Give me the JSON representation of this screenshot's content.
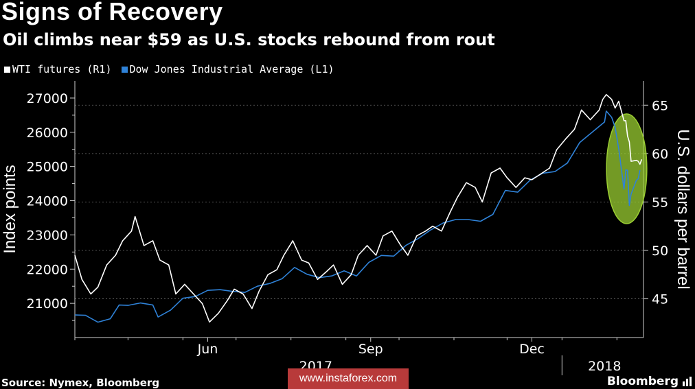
{
  "header": {
    "title": "Signs of Recovery",
    "subtitle": "Oil climbs near $59 as U.S. stocks rebound from rout"
  },
  "legend": [
    {
      "label": "WTI futures (R1)",
      "color": "#ffffff"
    },
    {
      "label": "Dow Jones Industrial Average (L1)",
      "color": "#2f82d8"
    }
  ],
  "footer": {
    "source": "Source: Nymex, Bloomberg",
    "brand": "Bloomberg",
    "watermark": "www.instaforex.com"
  },
  "chart_data": {
    "type": "line",
    "title": "Signs of Recovery",
    "subtitle": "Oil climbs near $59 as U.S. stocks rebound from rout",
    "ylabel": "Index points",
    "y2label": "U.S. dollars per barrel",
    "ylim": [
      20000,
      27500
    ],
    "y2lim": [
      41.0,
      67.5
    ],
    "yticks": [
      21000,
      22000,
      23000,
      24000,
      25000,
      26000,
      27000
    ],
    "y2ticks": [
      45,
      50,
      55,
      60,
      65
    ],
    "xlim": [
      "2017-04-01",
      "2018-02-16"
    ],
    "xticks": [
      {
        "date": "2017-06-15",
        "label": "Jun"
      },
      {
        "date": "2017-09-15",
        "label": "Sep"
      },
      {
        "date": "2017-12-15",
        "label": "Dec"
      }
    ],
    "year_labels": [
      {
        "date": "2017-08-15",
        "label": "2017"
      },
      {
        "date": "2018-01-25",
        "label": "2018"
      }
    ],
    "year_divider": "2018-01-01",
    "highlight": {
      "from": "2018-01-30",
      "to": "2018-02-14",
      "shape": "ellipse",
      "color": "#9acd32"
    },
    "grid": "dotted-horizontal",
    "series": [
      {
        "name": "Dow Jones Industrial Average (L1)",
        "axis": "left",
        "color": "#2f82d8",
        "points": [
          [
            "2017-04-01",
            20660
          ],
          [
            "2017-04-07",
            20650
          ],
          [
            "2017-04-14",
            20450
          ],
          [
            "2017-04-21",
            20550
          ],
          [
            "2017-04-26",
            20950
          ],
          [
            "2017-05-01",
            20940
          ],
          [
            "2017-05-08",
            21010
          ],
          [
            "2017-05-15",
            20950
          ],
          [
            "2017-05-18",
            20600
          ],
          [
            "2017-05-25",
            20800
          ],
          [
            "2017-06-01",
            21150
          ],
          [
            "2017-06-08",
            21200
          ],
          [
            "2017-06-15",
            21380
          ],
          [
            "2017-06-22",
            21400
          ],
          [
            "2017-06-29",
            21350
          ],
          [
            "2017-07-06",
            21320
          ],
          [
            "2017-07-13",
            21500
          ],
          [
            "2017-07-20",
            21580
          ],
          [
            "2017-07-27",
            21720
          ],
          [
            "2017-08-03",
            22050
          ],
          [
            "2017-08-10",
            21850
          ],
          [
            "2017-08-17",
            21750
          ],
          [
            "2017-08-24",
            21800
          ],
          [
            "2017-08-31",
            21950
          ],
          [
            "2017-09-07",
            21800
          ],
          [
            "2017-09-14",
            22200
          ],
          [
            "2017-09-21",
            22400
          ],
          [
            "2017-09-28",
            22380
          ],
          [
            "2017-10-05",
            22700
          ],
          [
            "2017-10-12",
            22900
          ],
          [
            "2017-10-19",
            23150
          ],
          [
            "2017-10-26",
            23350
          ],
          [
            "2017-11-02",
            23450
          ],
          [
            "2017-11-09",
            23450
          ],
          [
            "2017-11-16",
            23400
          ],
          [
            "2017-11-23",
            23600
          ],
          [
            "2017-11-30",
            24300
          ],
          [
            "2017-12-07",
            24250
          ],
          [
            "2017-12-14",
            24600
          ],
          [
            "2017-12-21",
            24800
          ],
          [
            "2017-12-28",
            24850
          ],
          [
            "2018-01-04",
            25100
          ],
          [
            "2018-01-11",
            25700
          ],
          [
            "2018-01-18",
            26000
          ],
          [
            "2018-01-25",
            26300
          ],
          [
            "2018-01-26",
            26620
          ],
          [
            "2018-01-29",
            26440
          ],
          [
            "2018-01-31",
            26150
          ],
          [
            "2018-02-02",
            25520
          ],
          [
            "2018-02-05",
            24340
          ],
          [
            "2018-02-06",
            24900
          ],
          [
            "2018-02-07",
            24890
          ],
          [
            "2018-02-08",
            23860
          ],
          [
            "2018-02-09",
            24190
          ],
          [
            "2018-02-12",
            24600
          ],
          [
            "2018-02-13",
            24640
          ],
          [
            "2018-02-14",
            24890
          ]
        ]
      },
      {
        "name": "WTI futures (R1)",
        "axis": "right",
        "color": "#ffffff",
        "points": [
          [
            "2017-04-01",
            49.5
          ],
          [
            "2017-04-05",
            47.0
          ],
          [
            "2017-04-10",
            45.5
          ],
          [
            "2017-04-14",
            46.2
          ],
          [
            "2017-04-19",
            48.5
          ],
          [
            "2017-04-24",
            49.5
          ],
          [
            "2017-04-28",
            51.0
          ],
          [
            "2017-05-03",
            52.0
          ],
          [
            "2017-05-05",
            53.5
          ],
          [
            "2017-05-10",
            50.5
          ],
          [
            "2017-05-15",
            51.0
          ],
          [
            "2017-05-19",
            49.0
          ],
          [
            "2017-05-24",
            48.5
          ],
          [
            "2017-05-28",
            45.5
          ],
          [
            "2017-06-02",
            46.5
          ],
          [
            "2017-06-07",
            45.5
          ],
          [
            "2017-06-12",
            44.5
          ],
          [
            "2017-06-16",
            42.6
          ],
          [
            "2017-06-21",
            43.5
          ],
          [
            "2017-06-26",
            44.8
          ],
          [
            "2017-06-30",
            46.0
          ],
          [
            "2017-07-05",
            45.5
          ],
          [
            "2017-07-10",
            44.0
          ],
          [
            "2017-07-14",
            45.8
          ],
          [
            "2017-07-19",
            47.5
          ],
          [
            "2017-07-24",
            48.0
          ],
          [
            "2017-07-28",
            49.5
          ],
          [
            "2017-08-02",
            51.0
          ],
          [
            "2017-08-07",
            49.0
          ],
          [
            "2017-08-11",
            48.7
          ],
          [
            "2017-08-16",
            47.0
          ],
          [
            "2017-08-21",
            47.8
          ],
          [
            "2017-08-25",
            48.5
          ],
          [
            "2017-08-30",
            46.5
          ],
          [
            "2017-09-04",
            47.5
          ],
          [
            "2017-09-08",
            49.5
          ],
          [
            "2017-09-13",
            50.5
          ],
          [
            "2017-09-18",
            49.5
          ],
          [
            "2017-09-22",
            51.5
          ],
          [
            "2017-09-27",
            52.0
          ],
          [
            "2017-10-02",
            50.5
          ],
          [
            "2017-10-06",
            49.5
          ],
          [
            "2017-10-11",
            51.5
          ],
          [
            "2017-10-16",
            52.0
          ],
          [
            "2017-10-20",
            52.5
          ],
          [
            "2017-10-25",
            52.0
          ],
          [
            "2017-10-30",
            54.0
          ],
          [
            "2017-11-03",
            55.5
          ],
          [
            "2017-11-08",
            57.0
          ],
          [
            "2017-11-13",
            56.5
          ],
          [
            "2017-11-17",
            55.0
          ],
          [
            "2017-11-22",
            58.0
          ],
          [
            "2017-11-27",
            58.5
          ],
          [
            "2017-12-01",
            57.5
          ],
          [
            "2017-12-06",
            56.5
          ],
          [
            "2017-12-11",
            57.5
          ],
          [
            "2017-12-15",
            57.3
          ],
          [
            "2017-12-20",
            57.9
          ],
          [
            "2017-12-25",
            58.5
          ],
          [
            "2017-12-29",
            60.4
          ],
          [
            "2018-01-03",
            61.5
          ],
          [
            "2018-01-08",
            62.5
          ],
          [
            "2018-01-12",
            64.5
          ],
          [
            "2018-01-17",
            63.5
          ],
          [
            "2018-01-22",
            64.5
          ],
          [
            "2018-01-24",
            65.6
          ],
          [
            "2018-01-26",
            66.1
          ],
          [
            "2018-01-29",
            65.6
          ],
          [
            "2018-01-31",
            64.7
          ],
          [
            "2018-02-02",
            65.4
          ],
          [
            "2018-02-05",
            63.4
          ],
          [
            "2018-02-06",
            63.4
          ],
          [
            "2018-02-07",
            61.8
          ],
          [
            "2018-02-08",
            61.2
          ],
          [
            "2018-02-09",
            59.2
          ],
          [
            "2018-02-12",
            59.3
          ],
          [
            "2018-02-13",
            59.2
          ],
          [
            "2018-02-14",
            58.9
          ],
          [
            "2018-02-15",
            59.4
          ]
        ]
      }
    ]
  }
}
